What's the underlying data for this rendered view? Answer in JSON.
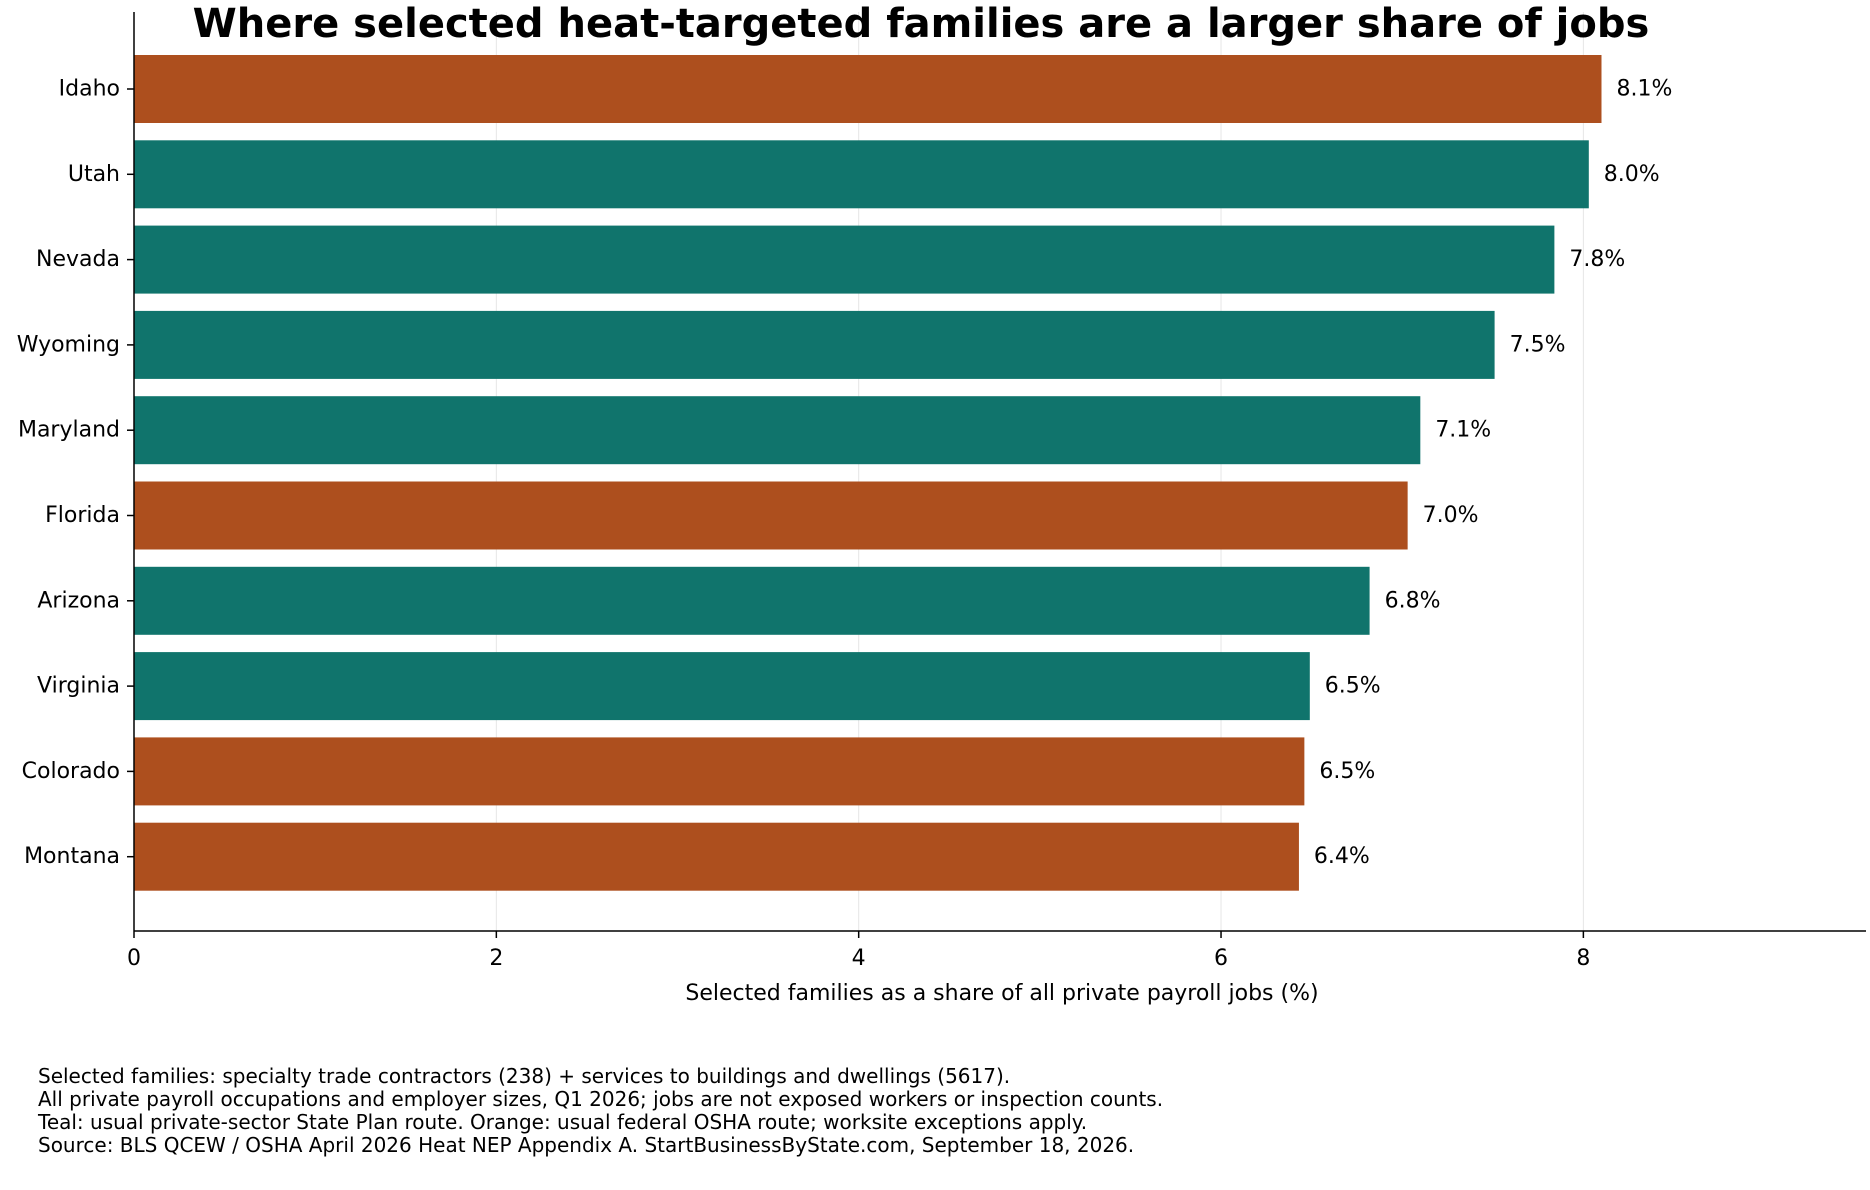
{
  "chart_data": {
    "type": "bar",
    "orientation": "horizontal",
    "title": "Where selected heat-targeted families are a larger share of jobs",
    "xlabel": "Selected families as a share of all private payroll jobs (%)",
    "ylabel": "",
    "xlim": [
      0,
      9.56
    ],
    "xticks": [
      0,
      2,
      4,
      6,
      8
    ],
    "grid": "vertical",
    "legend": "none",
    "categories": [
      "Idaho",
      "Utah",
      "Nevada",
      "Wyoming",
      "Maryland",
      "Florida",
      "Arizona",
      "Virginia",
      "Colorado",
      "Montana"
    ],
    "values": [
      8.1,
      8.03,
      7.84,
      7.51,
      7.1,
      7.03,
      6.82,
      6.49,
      6.46,
      6.43
    ],
    "value_labels": [
      "8.1%",
      "8.0%",
      "7.8%",
      "7.5%",
      "7.1%",
      "7.0%",
      "6.8%",
      "6.5%",
      "6.5%",
      "6.4%"
    ],
    "route": [
      "federal",
      "state",
      "state",
      "state",
      "state",
      "federal",
      "state",
      "state",
      "federal",
      "federal"
    ],
    "colors": {
      "state": "#10746c",
      "federal": "#ad4f1e",
      "grid": "#e6e6e6",
      "axis": "#000000"
    },
    "notes": [
      "Selected families: specialty trade contractors (238) + services to buildings and dwellings (5617).",
      "All private payroll occupations and employer sizes, Q1 2026; jobs are not exposed workers or inspection counts.",
      "Teal: usual private-sector State Plan route. Orange: usual federal OSHA route; worksite exceptions apply.",
      "Source: BLS QCEW / OSHA April 2026 Heat NEP Appendix A. StartBusinessByState.com, September 18, 2026."
    ]
  }
}
